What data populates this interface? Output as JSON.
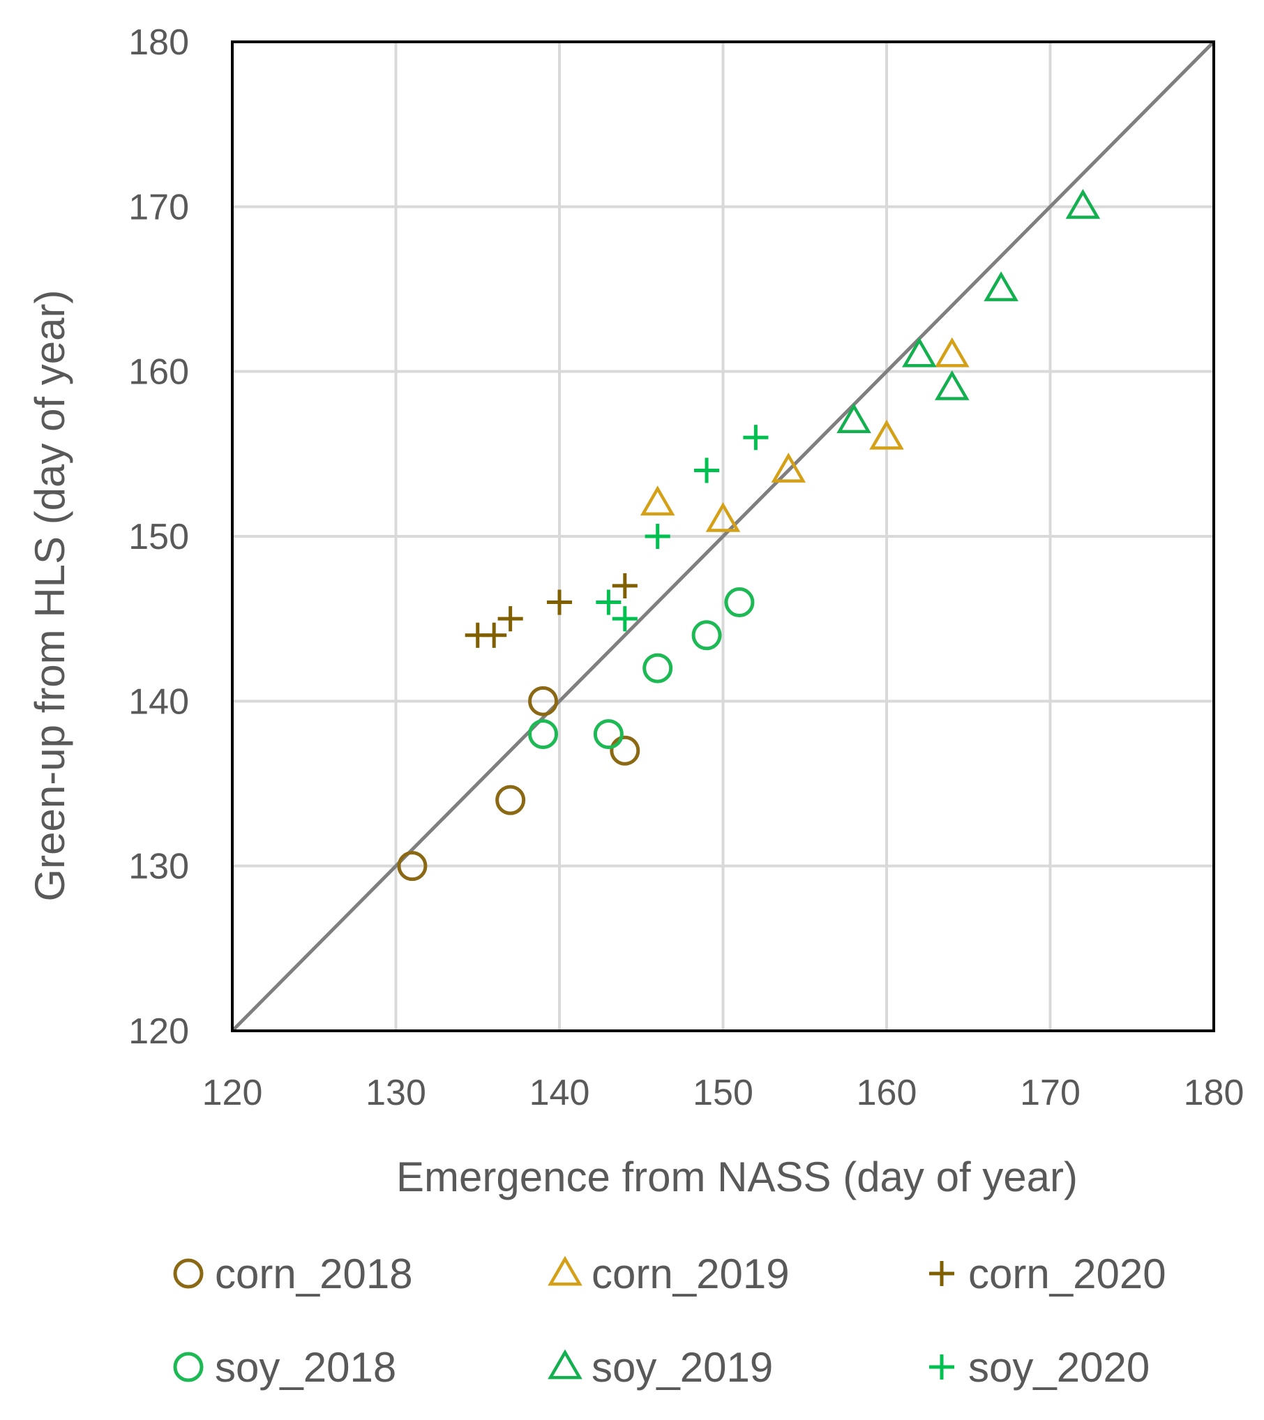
{
  "chart_data": {
    "type": "scatter",
    "title": "",
    "xlabel": "Emergence from NASS (day of year)",
    "ylabel": "Green-up from HLS (day of year)",
    "xlim": [
      120,
      180
    ],
    "ylim": [
      120,
      180
    ],
    "x_ticks": [
      "120",
      "130",
      "140",
      "150",
      "160",
      "170",
      "180"
    ],
    "y_ticks": [
      "120",
      "130",
      "140",
      "150",
      "160",
      "170",
      "180"
    ],
    "grid": true,
    "reference_line": "1:1",
    "legend_position": "bottom",
    "colors": {
      "corn_2018": "#8B6914",
      "corn_2019": "#D4A017",
      "corn_2020": "#7F5F00",
      "soy_2018": "#1DB954",
      "soy_2019": "#14B050",
      "soy_2020": "#00C050",
      "grid": "#D9D9D9",
      "reference": "#7F7F7F",
      "frame": "#000000"
    },
    "series": [
      {
        "name": "corn_2018",
        "marker": "circle",
        "points": [
          [
            131,
            130
          ],
          [
            137,
            134
          ],
          [
            139,
            140
          ],
          [
            144,
            137
          ]
        ]
      },
      {
        "name": "corn_2019",
        "marker": "triangle",
        "points": [
          [
            146,
            152
          ],
          [
            150,
            151
          ],
          [
            154,
            154
          ],
          [
            160,
            156
          ],
          [
            164,
            161
          ]
        ]
      },
      {
        "name": "corn_2020",
        "marker": "plus",
        "points": [
          [
            135,
            144
          ],
          [
            136,
            144
          ],
          [
            137,
            145
          ],
          [
            140,
            146
          ],
          [
            144,
            147
          ]
        ]
      },
      {
        "name": "soy_2018",
        "marker": "circle",
        "points": [
          [
            139,
            138
          ],
          [
            143,
            138
          ],
          [
            146,
            142
          ],
          [
            149,
            144
          ],
          [
            151,
            146
          ]
        ]
      },
      {
        "name": "soy_2019",
        "marker": "triangle",
        "points": [
          [
            158,
            157
          ],
          [
            162,
            161
          ],
          [
            164,
            159
          ],
          [
            167,
            165
          ],
          [
            172,
            170
          ]
        ]
      },
      {
        "name": "soy_2020",
        "marker": "plus",
        "points": [
          [
            143,
            146
          ],
          [
            144,
            145
          ],
          [
            146,
            150
          ],
          [
            149,
            154
          ],
          [
            152,
            156
          ]
        ]
      }
    ]
  }
}
